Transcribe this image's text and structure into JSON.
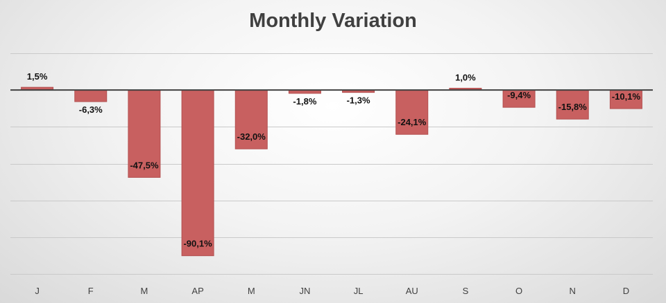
{
  "chart_data": {
    "type": "bar",
    "title": "Monthly Variation",
    "xlabel": "",
    "ylabel": "",
    "categories": [
      "J",
      "F",
      "M",
      "AP",
      "M",
      "JN",
      "JL",
      "AU",
      "S",
      "O",
      "N",
      "D"
    ],
    "values": [
      1.5,
      -6.3,
      -47.5,
      -90.1,
      -32.0,
      -1.8,
      -1.3,
      -24.1,
      1.0,
      -9.4,
      -15.8,
      -10.1
    ],
    "data_labels": [
      "1,5%",
      "-6,3%",
      "-47,5%",
      "-90,1%",
      "-32,0%",
      "-1,8%",
      "-1,3%",
      "-24,1%",
      "1,0%",
      "-9,4%",
      "-15,8%",
      "-10,1%"
    ],
    "ylim": [
      -100,
      20
    ],
    "value_suffix": "%",
    "grid": true,
    "legend": "none",
    "colors": {
      "bar_fill": "#c86060",
      "bar_stroke": "#b35050",
      "zero_line": "#404040",
      "grid": "#c9c9c9"
    }
  }
}
